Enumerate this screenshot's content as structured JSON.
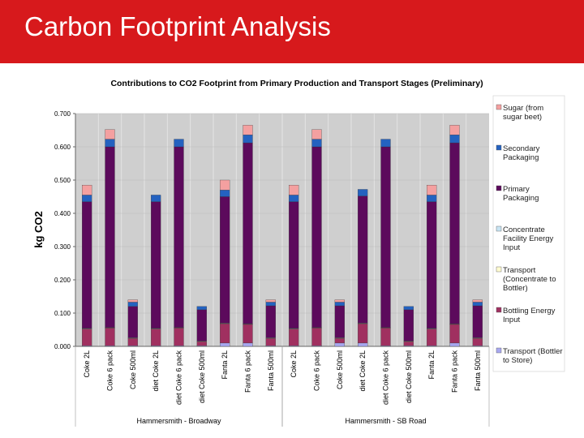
{
  "header": {
    "title": "Carbon Footprint Analysis"
  },
  "chart_data": {
    "type": "bar",
    "stacked": true,
    "title": "Contributions to CO2 Footprint from Primary Production and Transport Stages (Preliminary)",
    "y_label": "kg CO2",
    "categories": [
      "Coke 2L",
      "Coke 6 pack",
      "Coke 500ml",
      "diet Coke 2L",
      "diet Coke 6 pack",
      "diet Coke 500ml",
      "Fanta 2L",
      "Fanta 6 pack",
      "Fanta 500ml",
      "Coke 2L",
      "Coke 6 pack",
      "Coke 500ml",
      "diet Coke 2L",
      "diet Coke 6 pack",
      "diet Coke 500ml",
      "Fanta 2L",
      "Fanta 6 pack",
      "Fanta 500ml"
    ],
    "groups": [
      "Hammersmith - Broadway",
      "Hammersmith - SB Road"
    ],
    "ylim": [
      0,
      0.7
    ],
    "yticks": [
      {
        "value": 0,
        "label": "0.000"
      },
      {
        "value": 0.1,
        "label": "0.100"
      },
      {
        "value": 0.2,
        "label": "0.200"
      },
      {
        "value": 0.3,
        "label": "0.300"
      },
      {
        "value": 0.4,
        "label": "0.400"
      },
      {
        "value": 0.5,
        "label": "0.500"
      },
      {
        "value": 0.6,
        "label": "0.600"
      },
      {
        "value": 0.7,
        "label": "0.700"
      }
    ],
    "grid": true,
    "legend": "right",
    "series": [
      {
        "name": "Transport (Bottler to Store)",
        "color": "#a8a8f0",
        "values": [
          0.002,
          0.002,
          0.002,
          0.002,
          0.002,
          0.002,
          0.01,
          0.01,
          0.002,
          0.002,
          0.002,
          0.01,
          0.01,
          0.002,
          0.002,
          0.002,
          0.01,
          0.002
        ]
      },
      {
        "name": "Bottling Energy Input",
        "color": "#a03060",
        "values": [
          0.05,
          0.053,
          0.022,
          0.05,
          0.053,
          0.012,
          0.058,
          0.056,
          0.022,
          0.05,
          0.053,
          0.014,
          0.058,
          0.053,
          0.012,
          0.05,
          0.056,
          0.022
        ]
      },
      {
        "name": "Transport (Concentrate to Bottler)",
        "color": "#fffcd0",
        "values": [
          0.001,
          0.001,
          0.001,
          0.001,
          0.001,
          0.001,
          0.001,
          0.001,
          0.001,
          0.001,
          0.001,
          0.001,
          0.001,
          0.001,
          0.001,
          0.001,
          0.001,
          0.001
        ]
      },
      {
        "name": "Concentrate Facility Energy Input",
        "color": "#c8e4f4",
        "values": [
          0.001,
          0.001,
          0.001,
          0.001,
          0.001,
          0.001,
          0.001,
          0.001,
          0.001,
          0.001,
          0.001,
          0.001,
          0.001,
          0.001,
          0.001,
          0.001,
          0.001,
          0.001
        ]
      },
      {
        "name": "Primary Packaging",
        "color": "#5c0a5c",
        "values": [
          0.381,
          0.543,
          0.094,
          0.381,
          0.543,
          0.094,
          0.38,
          0.544,
          0.096,
          0.381,
          0.543,
          0.096,
          0.382,
          0.543,
          0.094,
          0.381,
          0.544,
          0.096
        ]
      },
      {
        "name": "Secondary Packaging",
        "color": "#2462c0",
        "values": [
          0.02,
          0.023,
          0.013,
          0.02,
          0.023,
          0.01,
          0.02,
          0.024,
          0.011,
          0.02,
          0.023,
          0.011,
          0.02,
          0.023,
          0.01,
          0.02,
          0.024,
          0.011
        ]
      },
      {
        "name": "Sugar (from sugar beet)",
        "color": "#f4a0a0",
        "values": [
          0.03,
          0.029,
          0.007,
          0,
          0,
          0,
          0.03,
          0.029,
          0.007,
          0.03,
          0.029,
          0.007,
          0,
          0,
          0,
          0.03,
          0.029,
          0.007
        ]
      }
    ]
  }
}
